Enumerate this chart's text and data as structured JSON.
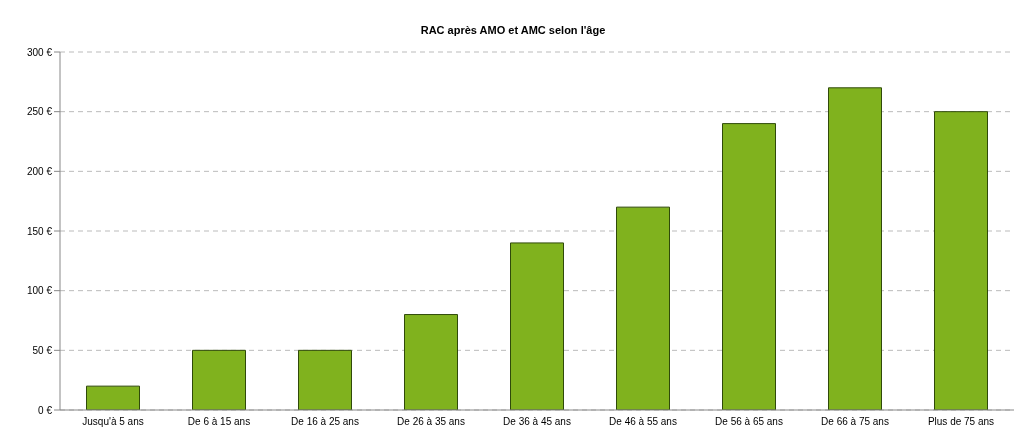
{
  "chart_data": {
    "type": "bar",
    "title": "RAC après AMO et AMC selon l'âge",
    "categories": [
      "Jusqu'à 5 ans",
      "De 6 à 15 ans",
      "De 16 à 25 ans",
      "De 26 à 35 ans",
      "De 36 à 45 ans",
      "De 46 à 55 ans",
      "De 56 à 65 ans",
      "De 66 à 75 ans",
      "Plus de 75 ans"
    ],
    "values": [
      20,
      50,
      50,
      80,
      140,
      170,
      240,
      270,
      250
    ],
    "color": "#80b21e",
    "ylim": [
      0,
      300
    ],
    "yticks": [
      {
        "value": 0,
        "label": "0 €"
      },
      {
        "value": 50,
        "label": "50 €"
      },
      {
        "value": 100,
        "label": "100 €"
      },
      {
        "value": 150,
        "label": "150 €"
      },
      {
        "value": 200,
        "label": "200 €"
      },
      {
        "value": 250,
        "label": "250 €"
      },
      {
        "value": 300,
        "label": "300 €"
      }
    ],
    "grid": "y",
    "legend": false
  }
}
